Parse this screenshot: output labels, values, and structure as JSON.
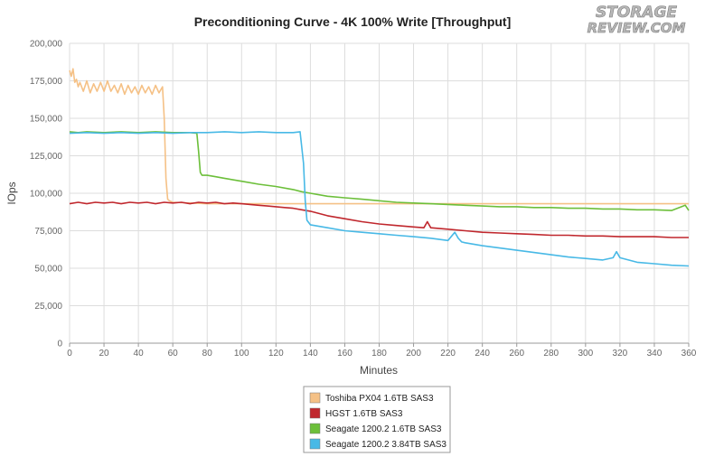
{
  "chart_data": {
    "type": "line",
    "title": "Preconditioning Curve - 4K 100% Write [Throughput]",
    "xlabel": "Minutes",
    "ylabel": "IOps",
    "xlim": [
      0,
      360
    ],
    "ylim": [
      0,
      200000
    ],
    "x_ticks": [
      0,
      20,
      40,
      60,
      80,
      100,
      120,
      140,
      160,
      180,
      200,
      220,
      240,
      260,
      280,
      300,
      320,
      340,
      360
    ],
    "y_ticks": [
      0,
      25000,
      50000,
      75000,
      100000,
      125000,
      150000,
      175000,
      200000
    ],
    "x_tick_labels": [
      "0",
      "20",
      "40",
      "60",
      "80",
      "100",
      "120",
      "140",
      "160",
      "180",
      "200",
      "220",
      "240",
      "260",
      "280",
      "300",
      "320",
      "340",
      "360"
    ],
    "y_tick_labels": [
      "0",
      "25,000",
      "50,000",
      "75,000",
      "100,000",
      "125,000",
      "150,000",
      "175,000",
      "200,000"
    ],
    "grid": true,
    "legend_position": "bottom-center",
    "series": [
      {
        "name": "Toshiba PX04 1.6TB SAS3",
        "color": "#F5C186",
        "x": [
          0,
          1,
          2,
          3,
          4,
          5,
          6,
          8,
          10,
          12,
          14,
          16,
          18,
          20,
          22,
          24,
          26,
          28,
          30,
          32,
          34,
          36,
          38,
          40,
          42,
          44,
          46,
          48,
          50,
          52,
          54,
          55,
          56,
          57,
          58,
          60,
          80,
          100,
          120,
          140,
          160,
          180,
          200,
          220,
          240,
          260,
          280,
          300,
          320,
          340,
          360
        ],
        "y": [
          182000,
          178000,
          183000,
          174000,
          176000,
          171000,
          174000,
          168000,
          175000,
          167000,
          173000,
          168000,
          174000,
          168000,
          175000,
          168000,
          172000,
          167000,
          173000,
          166000,
          172000,
          167000,
          171000,
          166000,
          172000,
          167000,
          171000,
          166000,
          172000,
          167000,
          171000,
          150000,
          110000,
          96000,
          95000,
          94000,
          93000,
          93000,
          93000,
          93000,
          93000,
          93000,
          93000,
          93000,
          93000,
          93000,
          93000,
          93000,
          93000,
          93000,
          93000
        ]
      },
      {
        "name": "HGST 1.6TB SAS3",
        "color": "#C0272D",
        "x": [
          0,
          5,
          10,
          15,
          20,
          25,
          30,
          35,
          40,
          45,
          50,
          55,
          60,
          65,
          70,
          75,
          80,
          85,
          90,
          95,
          100,
          105,
          110,
          115,
          120,
          125,
          130,
          135,
          140,
          145,
          150,
          160,
          170,
          180,
          190,
          200,
          206,
          208,
          210,
          220,
          230,
          240,
          250,
          260,
          270,
          280,
          290,
          300,
          310,
          320,
          330,
          340,
          350,
          360
        ],
        "y": [
          93000,
          94000,
          93000,
          94000,
          93500,
          94000,
          93000,
          94000,
          93500,
          94000,
          93000,
          94000,
          93500,
          94000,
          93000,
          94000,
          93500,
          94000,
          93000,
          93500,
          93000,
          92500,
          92000,
          91500,
          91000,
          90500,
          90000,
          89000,
          88000,
          86500,
          85000,
          83000,
          81000,
          79500,
          78500,
          77500,
          77000,
          81000,
          77000,
          76000,
          75000,
          74000,
          73500,
          73000,
          72500,
          72000,
          72000,
          71500,
          71500,
          71000,
          71000,
          71000,
          70500,
          70500
        ]
      },
      {
        "name": "Seagate 1200.2 1.6TB SAS3",
        "color": "#6CBF3A",
        "x": [
          0,
          5,
          10,
          20,
          30,
          40,
          50,
          60,
          70,
          74,
          75,
          76,
          77,
          80,
          85,
          90,
          100,
          110,
          120,
          130,
          135,
          140,
          150,
          160,
          170,
          180,
          190,
          200,
          210,
          220,
          230,
          240,
          250,
          260,
          270,
          280,
          290,
          300,
          310,
          320,
          330,
          340,
          350,
          358,
          360
        ],
        "y": [
          141000,
          140500,
          141000,
          140500,
          141000,
          140500,
          141000,
          140500,
          140500,
          140000,
          128000,
          114000,
          112000,
          112000,
          111000,
          110000,
          108000,
          106000,
          104500,
          102500,
          101000,
          100000,
          98000,
          97000,
          96000,
          95000,
          94000,
          93500,
          93000,
          92500,
          92000,
          91500,
          91000,
          91000,
          90500,
          90500,
          90000,
          90000,
          89500,
          89500,
          89000,
          89000,
          88500,
          92000,
          88500
        ]
      },
      {
        "name": "Seagate 1200.2 3.84TB SAS3",
        "color": "#48B9E6",
        "x": [
          0,
          10,
          20,
          30,
          40,
          50,
          60,
          70,
          80,
          90,
          100,
          110,
          120,
          130,
          134,
          136,
          137,
          138,
          140,
          150,
          160,
          170,
          180,
          190,
          200,
          210,
          220,
          224,
          226,
          228,
          230,
          240,
          250,
          260,
          270,
          280,
          290,
          300,
          310,
          316,
          318,
          320,
          330,
          340,
          350,
          360
        ],
        "y": [
          140000,
          140500,
          140000,
          140500,
          140000,
          140500,
          140000,
          140500,
          140500,
          141000,
          140500,
          141000,
          140500,
          140500,
          141000,
          120000,
          95000,
          82000,
          79000,
          77000,
          75000,
          74000,
          73000,
          72000,
          71000,
          70000,
          68500,
          74000,
          70000,
          67500,
          67000,
          65000,
          63500,
          62000,
          60500,
          59000,
          57500,
          56500,
          55500,
          57000,
          61000,
          57000,
          54000,
          53000,
          52000,
          51500
        ]
      }
    ]
  }
}
